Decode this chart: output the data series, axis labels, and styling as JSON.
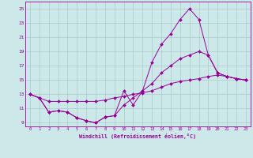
{
  "xlabel": "Windchill (Refroidissement éolien,°C)",
  "background_color": "#cce8e8",
  "grid_color": "#aacccc",
  "line_color": "#990099",
  "line1_x": [
    0,
    1,
    2,
    3,
    4,
    5,
    6,
    7,
    8,
    9,
    10,
    11,
    12,
    13,
    14,
    15,
    16,
    17,
    18,
    19,
    20,
    21,
    22,
    23
  ],
  "line1_y": [
    13.0,
    12.5,
    10.5,
    10.7,
    10.5,
    9.7,
    9.3,
    9.0,
    9.8,
    10.0,
    13.5,
    11.5,
    13.5,
    17.5,
    20.0,
    21.5,
    23.5,
    25.0,
    23.5,
    18.5,
    16.0,
    15.5,
    15.2,
    15.0
  ],
  "line2_x": [
    0,
    1,
    2,
    3,
    4,
    5,
    6,
    7,
    8,
    9,
    10,
    11,
    12,
    13,
    14,
    15,
    16,
    17,
    18,
    19,
    20,
    21,
    22,
    23
  ],
  "line2_y": [
    13.0,
    12.5,
    10.5,
    10.7,
    10.5,
    9.7,
    9.3,
    9.0,
    9.8,
    10.0,
    11.5,
    12.5,
    13.5,
    14.5,
    16.0,
    17.0,
    18.0,
    18.5,
    19.0,
    18.5,
    16.0,
    15.5,
    15.2,
    15.0
  ],
  "line3_x": [
    0,
    1,
    2,
    3,
    4,
    5,
    6,
    7,
    8,
    9,
    10,
    11,
    12,
    13,
    14,
    15,
    16,
    17,
    18,
    19,
    20,
    21,
    22,
    23
  ],
  "line3_y": [
    13.0,
    12.5,
    12.0,
    12.0,
    12.0,
    12.0,
    12.0,
    12.0,
    12.2,
    12.5,
    12.7,
    13.0,
    13.2,
    13.5,
    14.0,
    14.5,
    14.8,
    15.0,
    15.2,
    15.5,
    15.7,
    15.5,
    15.2,
    15.0
  ],
  "xlim": [
    -0.5,
    23.5
  ],
  "ylim": [
    8.5,
    26.0
  ],
  "yticks": [
    9,
    11,
    13,
    15,
    17,
    19,
    21,
    23,
    25
  ],
  "xticks": [
    0,
    1,
    2,
    3,
    4,
    5,
    6,
    7,
    8,
    9,
    10,
    11,
    12,
    13,
    14,
    15,
    16,
    17,
    18,
    19,
    20,
    21,
    22,
    23
  ]
}
